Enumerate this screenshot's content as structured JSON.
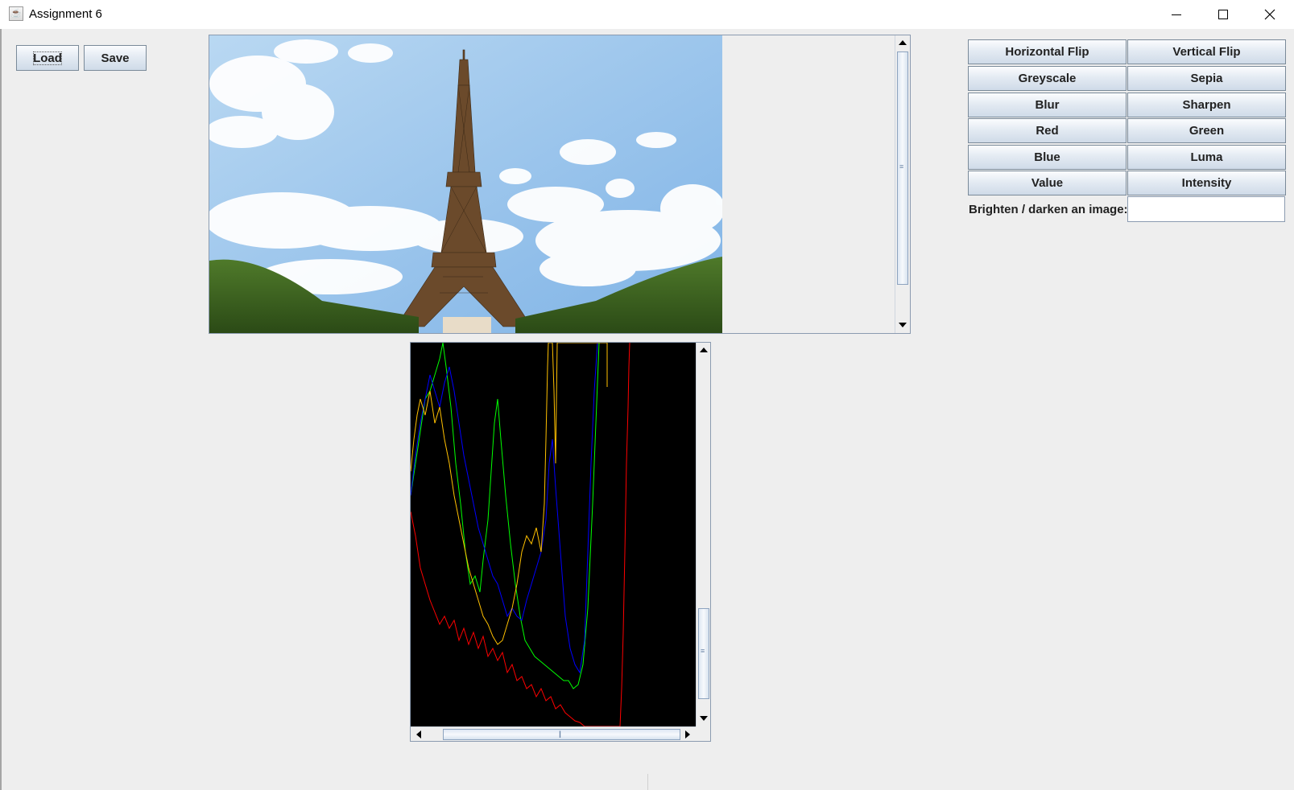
{
  "window": {
    "title": "Assignment 6",
    "icon": "java-cup-icon",
    "controls": [
      "minimize-icon",
      "maximize-icon",
      "close-icon"
    ]
  },
  "toolbar": {
    "load_label": "Load",
    "save_label": "Save"
  },
  "operations": [
    {
      "id": "horizontal-flip",
      "label": "Horizontal Flip"
    },
    {
      "id": "vertical-flip",
      "label": "Vertical Flip"
    },
    {
      "id": "greyscale",
      "label": "Greyscale"
    },
    {
      "id": "sepia",
      "label": "Sepia"
    },
    {
      "id": "blur",
      "label": "Blur"
    },
    {
      "id": "sharpen",
      "label": "Sharpen"
    },
    {
      "id": "red",
      "label": "Red"
    },
    {
      "id": "green",
      "label": "Green"
    },
    {
      "id": "blue",
      "label": "Blue"
    },
    {
      "id": "luma",
      "label": "Luma"
    },
    {
      "id": "value",
      "label": "Value"
    },
    {
      "id": "intensity",
      "label": "Intensity"
    }
  ],
  "brighten": {
    "label": "Brighten / darken an image:",
    "value": ""
  },
  "image_view": {
    "subject": "Eiffel Tower under blue sky with clouds, hedges in foreground",
    "vertical_scroll_position": 0.4
  },
  "histogram": {
    "background": "#000000",
    "series_colors": {
      "red": "#ff0000",
      "green": "#00ff00",
      "blue": "#0000ff",
      "intensity": "#ffc000"
    },
    "vertical_scroll_position": 0.82,
    "horizontal_scroll_position": 0.0
  }
}
